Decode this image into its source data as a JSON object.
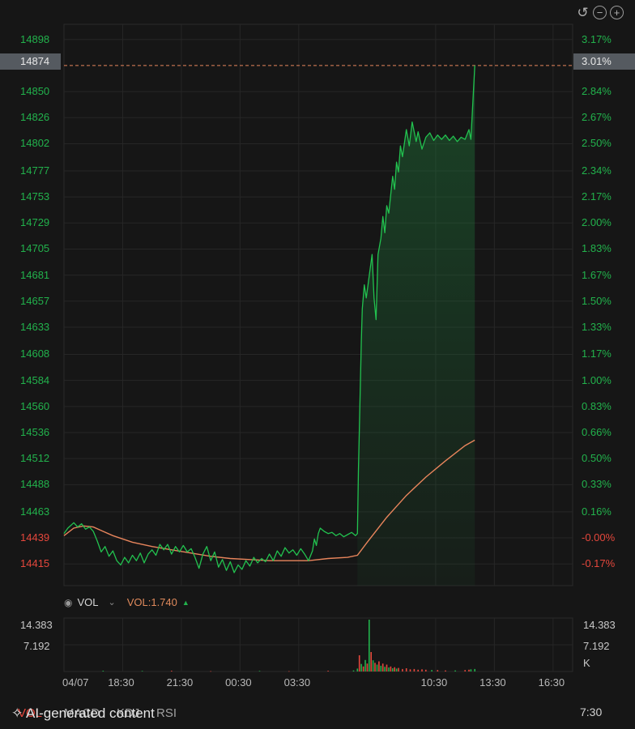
{
  "toolbar": {
    "icons": [
      "undo-icon",
      "zoom-out-icon",
      "zoom-in-icon"
    ],
    "undo": "↺",
    "zoom_out": "−",
    "zoom_in": "+"
  },
  "current": {
    "price": "14874",
    "change": "3.01%"
  },
  "chart_data": {
    "type": "line",
    "price_axis_labels": [
      "14898",
      "14850",
      "14826",
      "14802",
      "14777",
      "14753",
      "14729",
      "14705",
      "14681",
      "14657",
      "14633",
      "14608",
      "14584",
      "14560",
      "14536",
      "14512",
      "14488",
      "14463",
      "14439",
      "14415"
    ],
    "price_axis_values": [
      14898,
      14850,
      14826,
      14802,
      14777,
      14753,
      14729,
      14705,
      14681,
      14657,
      14633,
      14608,
      14584,
      14560,
      14536,
      14512,
      14488,
      14463,
      14439,
      14415
    ],
    "pct_axis_labels": [
      "3.17%",
      "2.84%",
      "2.67%",
      "2.50%",
      "2.34%",
      "2.17%",
      "2.00%",
      "1.83%",
      "1.67%",
      "1.50%",
      "1.33%",
      "1.17%",
      "1.00%",
      "0.83%",
      "0.66%",
      "0.50%",
      "0.33%",
      "0.16%",
      "-0.00%",
      "-0.17%"
    ],
    "x_tick_labels": [
      "04/07",
      "18:30",
      "21:30",
      "00:30",
      "03:30",
      "10:30",
      "13:30",
      "16:30"
    ],
    "x_tick_hours": [
      15.5,
      18.5,
      21.5,
      24.5,
      27.5,
      34.5,
      37.5,
      40.5
    ],
    "xlim_hours": [
      15.5,
      41.5
    ],
    "ylim": [
      14395,
      14912
    ],
    "colors": {
      "price_line": "#22c24f",
      "avg_line": "#e8855c",
      "current_line": "#e8855c",
      "up_label": "#22b24c",
      "down_label": "#e5473c"
    },
    "series": [
      {
        "values": [
          [
            15.5,
            14443
          ],
          [
            15.7,
            14448
          ],
          [
            16.0,
            14453
          ],
          [
            16.2,
            14449
          ],
          [
            16.4,
            14452
          ],
          [
            16.6,
            14447
          ],
          [
            16.8,
            14449
          ],
          [
            17.0,
            14445
          ],
          [
            17.2,
            14436
          ],
          [
            17.4,
            14426
          ],
          [
            17.6,
            14431
          ],
          [
            17.8,
            14422
          ],
          [
            18.0,
            14427
          ],
          [
            18.2,
            14418
          ],
          [
            18.4,
            14414
          ],
          [
            18.6,
            14421
          ],
          [
            18.8,
            14416
          ],
          [
            19.0,
            14423
          ],
          [
            19.2,
            14418
          ],
          [
            19.4,
            14425
          ],
          [
            19.6,
            14416
          ],
          [
            19.8,
            14424
          ],
          [
            20.0,
            14428
          ],
          [
            20.2,
            14423
          ],
          [
            20.4,
            14433
          ],
          [
            20.6,
            14428
          ],
          [
            20.8,
            14433
          ],
          [
            21.0,
            14424
          ],
          [
            21.2,
            14431
          ],
          [
            21.4,
            14426
          ],
          [
            21.6,
            14432
          ],
          [
            21.8,
            14426
          ],
          [
            22.0,
            14429
          ],
          [
            22.2,
            14421
          ],
          [
            22.4,
            14411
          ],
          [
            22.6,
            14424
          ],
          [
            22.8,
            14431
          ],
          [
            23.0,
            14418
          ],
          [
            23.2,
            14426
          ],
          [
            23.4,
            14412
          ],
          [
            23.6,
            14419
          ],
          [
            23.8,
            14409
          ],
          [
            24.0,
            14417
          ],
          [
            24.2,
            14407
          ],
          [
            24.4,
            14414
          ],
          [
            24.6,
            14410
          ],
          [
            24.8,
            14418
          ],
          [
            25.0,
            14413
          ],
          [
            25.2,
            14421
          ],
          [
            25.4,
            14416
          ],
          [
            25.6,
            14420
          ],
          [
            25.8,
            14417
          ],
          [
            26.0,
            14424
          ],
          [
            26.2,
            14418
          ],
          [
            26.4,
            14427
          ],
          [
            26.6,
            14422
          ],
          [
            26.8,
            14430
          ],
          [
            27.0,
            14425
          ],
          [
            27.2,
            14428
          ],
          [
            27.4,
            14423
          ],
          [
            27.6,
            14429
          ],
          [
            27.8,
            14424
          ],
          [
            28.0,
            14418
          ],
          [
            28.2,
            14427
          ],
          [
            28.3,
            14438
          ],
          [
            28.4,
            14432
          ],
          [
            28.5,
            14443
          ],
          [
            28.6,
            14448
          ],
          [
            28.8,
            14445
          ],
          [
            29.0,
            14443
          ],
          [
            29.2,
            14444
          ],
          [
            29.4,
            14441
          ],
          [
            29.6,
            14443
          ],
          [
            29.8,
            14440
          ],
          [
            30.0,
            14442
          ],
          [
            30.2,
            14444
          ],
          [
            30.4,
            14441
          ],
          [
            30.5,
            14443
          ],
          [
            30.55,
            14500
          ],
          [
            30.6,
            14540
          ],
          [
            30.65,
            14580
          ],
          [
            30.7,
            14620
          ],
          [
            30.75,
            14650
          ],
          [
            30.85,
            14672
          ],
          [
            30.95,
            14660
          ],
          [
            31.1,
            14680
          ],
          [
            31.25,
            14700
          ],
          [
            31.35,
            14660
          ],
          [
            31.45,
            14640
          ],
          [
            31.55,
            14700
          ],
          [
            31.7,
            14715
          ],
          [
            31.8,
            14735
          ],
          [
            31.9,
            14720
          ],
          [
            32.0,
            14745
          ],
          [
            32.1,
            14738
          ],
          [
            32.2,
            14755
          ],
          [
            32.3,
            14772
          ],
          [
            32.4,
            14760
          ],
          [
            32.5,
            14785
          ],
          [
            32.6,
            14776
          ],
          [
            32.7,
            14800
          ],
          [
            32.8,
            14790
          ],
          [
            33.0,
            14815
          ],
          [
            33.15,
            14800
          ],
          [
            33.3,
            14822
          ],
          [
            33.5,
            14804
          ],
          [
            33.6,
            14813
          ],
          [
            33.8,
            14797
          ],
          [
            34.0,
            14808
          ],
          [
            34.2,
            14812
          ],
          [
            34.4,
            14805
          ],
          [
            34.6,
            14810
          ],
          [
            34.8,
            14806
          ],
          [
            35.0,
            14810
          ],
          [
            35.2,
            14805
          ],
          [
            35.4,
            14809
          ],
          [
            35.6,
            14804
          ],
          [
            35.8,
            14808
          ],
          [
            36.0,
            14806
          ],
          [
            36.2,
            14815
          ],
          [
            36.3,
            14806
          ],
          [
            36.5,
            14874
          ]
        ]
      },
      {
        "values": [
          [
            15.5,
            14441
          ],
          [
            16.0,
            14448
          ],
          [
            16.5,
            14450
          ],
          [
            17.0,
            14449
          ],
          [
            17.5,
            14445
          ],
          [
            18.0,
            14441
          ],
          [
            19.0,
            14435
          ],
          [
            20.0,
            14431
          ],
          [
            21.0,
            14428
          ],
          [
            22.0,
            14425
          ],
          [
            23.0,
            14422
          ],
          [
            24.0,
            14420
          ],
          [
            25.0,
            14419
          ],
          [
            26.0,
            14418
          ],
          [
            27.0,
            14418
          ],
          [
            28.0,
            14418
          ],
          [
            29.0,
            14420
          ],
          [
            30.0,
            14421
          ],
          [
            30.5,
            14423
          ],
          [
            31.0,
            14435
          ],
          [
            32.0,
            14458
          ],
          [
            33.0,
            14478
          ],
          [
            34.0,
            14495
          ],
          [
            35.0,
            14510
          ],
          [
            36.0,
            14524
          ],
          [
            36.5,
            14529
          ]
        ]
      }
    ]
  },
  "volume": {
    "indicator": "VOL",
    "label": "VOL:",
    "value": "1.740",
    "axis_labels": [
      "14.383",
      "7.192"
    ],
    "axis_unit": "K",
    "ylim": [
      0,
      14.383
    ],
    "bars": [
      [
        17.5,
        0.2
      ],
      [
        19.5,
        0.15
      ],
      [
        21.0,
        0.2
      ],
      [
        23.0,
        0.1
      ],
      [
        25.5,
        0.15
      ],
      [
        27.0,
        0.1
      ],
      [
        29.0,
        0.2
      ],
      [
        30.3,
        0.3
      ],
      [
        30.5,
        0.8
      ],
      [
        30.6,
        4.5
      ],
      [
        30.7,
        2.1
      ],
      [
        30.8,
        1.4
      ],
      [
        30.9,
        3.2
      ],
      [
        31.0,
        2.2
      ],
      [
        31.1,
        14.383
      ],
      [
        31.2,
        5.4
      ],
      [
        31.3,
        3.1
      ],
      [
        31.4,
        2.4
      ],
      [
        31.5,
        1.9
      ],
      [
        31.6,
        2.8
      ],
      [
        31.7,
        1.6
      ],
      [
        31.8,
        2.2
      ],
      [
        31.9,
        1.3
      ],
      [
        32.0,
        1.9
      ],
      [
        32.1,
        1.1
      ],
      [
        32.2,
        1.4
      ],
      [
        32.3,
        0.9
      ],
      [
        32.4,
        1.2
      ],
      [
        32.5,
        0.8
      ],
      [
        32.6,
        1.0
      ],
      [
        32.8,
        0.7
      ],
      [
        33.0,
        0.9
      ],
      [
        33.2,
        0.6
      ],
      [
        33.4,
        0.7
      ],
      [
        33.6,
        0.5
      ],
      [
        33.8,
        0.6
      ],
      [
        34.0,
        0.5
      ],
      [
        34.3,
        0.4
      ],
      [
        34.6,
        0.4
      ],
      [
        35.0,
        0.3
      ],
      [
        35.5,
        0.3
      ],
      [
        36.0,
        0.4
      ],
      [
        36.2,
        0.5
      ],
      [
        36.3,
        0.6
      ],
      [
        36.5,
        0.7
      ]
    ]
  },
  "tabs": {
    "vol": "VOL",
    "macd": "MACD",
    "kdj": "KDJ",
    "rsi": "RSI"
  },
  "footer": {
    "ai_note": "AI-generated content",
    "time": "7:30"
  }
}
